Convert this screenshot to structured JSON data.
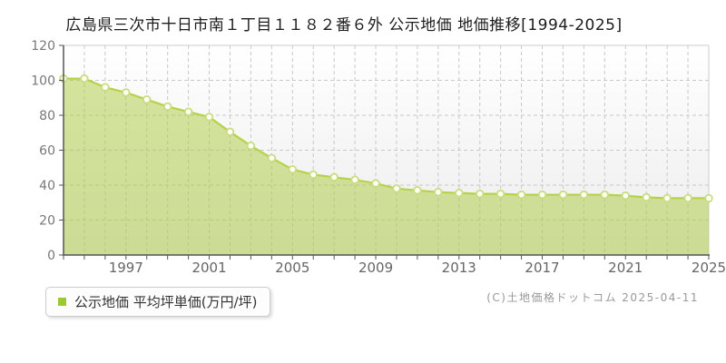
{
  "title": "広島県三次市十日市南１丁目１１８２番６外 公示地価 地価推移[1994-2025]",
  "legend": {
    "label": "公示地価 平均坪単価(万円/坪)",
    "marker_color": "#9dc82f"
  },
  "copyright": "(C)土地価格ドットコム 2025-04-11",
  "chart_data": {
    "type": "area",
    "title": "広島県三次市十日市南１丁目１１８２番６外 公示地価 地価推移[1994-2025]",
    "xlabel": "",
    "ylabel": "平均坪単価(万円/坪)",
    "x": [
      1994,
      1995,
      1996,
      1997,
      1998,
      1999,
      2000,
      2001,
      2002,
      2003,
      2004,
      2005,
      2006,
      2007,
      2008,
      2009,
      2010,
      2011,
      2012,
      2013,
      2014,
      2015,
      2016,
      2017,
      2018,
      2019,
      2020,
      2021,
      2022,
      2023,
      2024,
      2025
    ],
    "series": [
      {
        "name": "公示地価 平均坪単価(万円/坪)",
        "values": [
          101,
          101,
          96,
          93,
          89,
          85,
          82,
          79,
          70.5,
          62.5,
          55.5,
          49,
          46,
          44.5,
          43,
          41,
          38,
          37,
          36,
          35.5,
          35,
          35,
          34.5,
          34.5,
          34.5,
          34.5,
          34.5,
          34,
          33,
          32.5,
          32.5,
          32.5
        ]
      }
    ],
    "ylim": [
      0,
      120
    ],
    "yticks": [
      0,
      20,
      40,
      60,
      80,
      100,
      120
    ],
    "xticks": [
      1997,
      2001,
      2005,
      2009,
      2013,
      2017,
      2021,
      2025
    ],
    "grid": true,
    "legend_position": "bottom-left",
    "colors": {
      "area_fill": "rgba(172,204,62,0.5)",
      "line": "#b5d249",
      "marker_fill": "#fffff6",
      "marker_stroke": "#c8dc82",
      "gridline": "#c8c8c8",
      "axis": "#555555",
      "border": "#cccccc",
      "x_label": "#666666",
      "y_label": "#777777",
      "bg_top": "#ffffff",
      "bg_bottom": "#ececec"
    }
  }
}
